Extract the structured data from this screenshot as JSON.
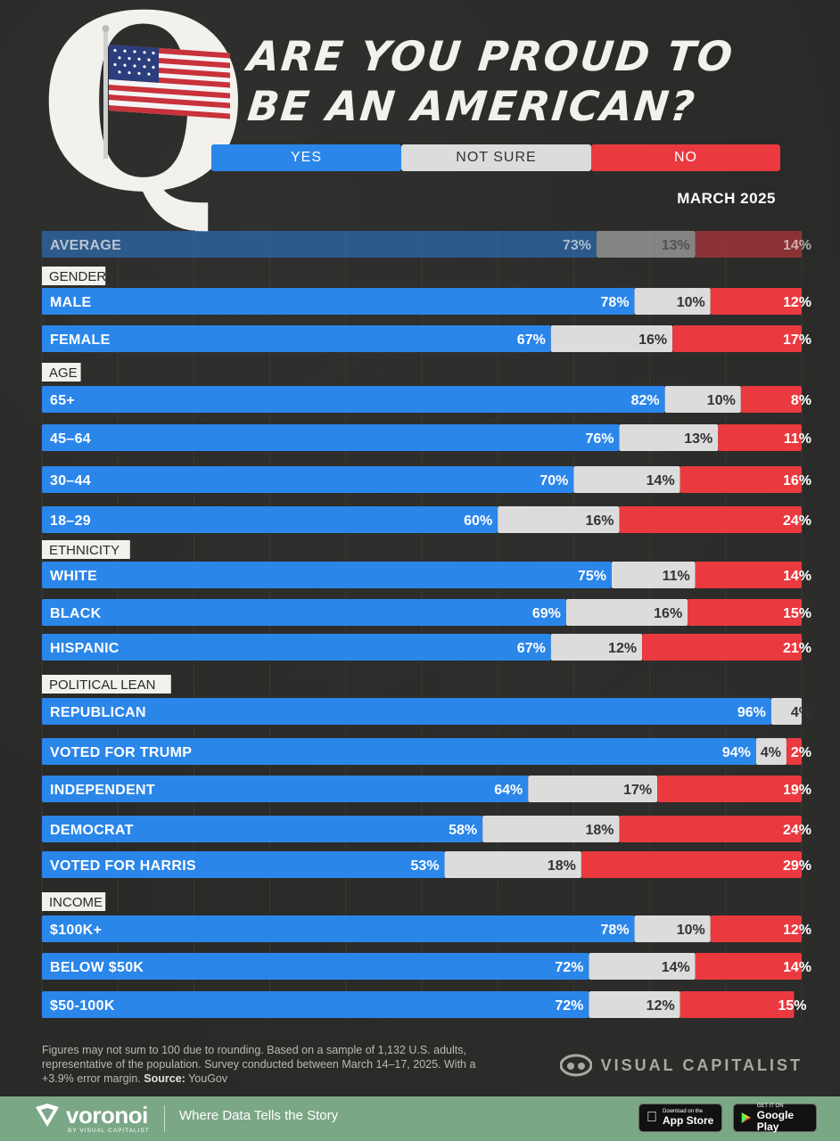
{
  "header": {
    "title_line1": "Are You Proud to",
    "title_line2": "Be an American?",
    "date": "MARCH 2025"
  },
  "legend": {
    "yes": "YES",
    "not_sure": "NOT SURE",
    "no": "NO"
  },
  "colors": {
    "yes": "#2b86ea",
    "not_sure": "#dcdcdc",
    "no": "#ea3a3f",
    "background": "#292927"
  },
  "chart_data": {
    "type": "bar",
    "stacked": true,
    "orientation": "horizontal",
    "series_names": [
      "YES",
      "NOT SURE",
      "NO"
    ],
    "average": {
      "label": "AVERAGE",
      "values": [
        73,
        13,
        14
      ]
    },
    "groups": [
      {
        "name": "GENDER",
        "rows": [
          {
            "label": "MALE",
            "values": [
              78,
              10,
              12
            ]
          },
          {
            "label": "FEMALE",
            "values": [
              67,
              16,
              17
            ]
          }
        ]
      },
      {
        "name": "AGE",
        "rows": [
          {
            "label": "65+",
            "values": [
              82,
              10,
              8
            ]
          },
          {
            "label": "45–64",
            "values": [
              76,
              13,
              11
            ]
          },
          {
            "label": "30–44",
            "values": [
              70,
              14,
              16
            ]
          },
          {
            "label": "18–29",
            "values": [
              60,
              16,
              24
            ]
          }
        ]
      },
      {
        "name": "ETHNICITY",
        "rows": [
          {
            "label": "WHITE",
            "values": [
              75,
              11,
              14
            ]
          },
          {
            "label": "BLACK",
            "values": [
              69,
              16,
              15
            ]
          },
          {
            "label": "HISPANIC",
            "values": [
              67,
              12,
              21
            ]
          }
        ]
      },
      {
        "name": "POLITICAL LEAN",
        "rows": [
          {
            "label": "REPUBLICAN",
            "values": [
              96,
              4,
              null
            ]
          },
          {
            "label": "VOTED FOR TRUMP",
            "values": [
              94,
              4,
              2
            ]
          },
          {
            "label": "INDEPENDENT",
            "values": [
              64,
              17,
              19
            ]
          },
          {
            "label": "DEMOCRAT",
            "values": [
              58,
              18,
              24
            ]
          },
          {
            "label": "VOTED FOR HARRIS",
            "values": [
              53,
              18,
              29
            ]
          }
        ]
      },
      {
        "name": "INCOME",
        "rows": [
          {
            "label": "$100K+",
            "values": [
              78,
              10,
              12
            ]
          },
          {
            "label": "BELOW $50K",
            "values": [
              72,
              14,
              14
            ]
          },
          {
            "label": "$50-100K",
            "values": [
              72,
              12,
              15
            ]
          }
        ]
      }
    ],
    "value_suffix": "%"
  },
  "footer": {
    "note_text": "Figures may not sum to 100 due to rounding. Based on a sample of 1,132 U.S. adults, representative of the population. Survey conducted between March 14–17, 2025. With a +3.9% error margin.",
    "source_label": "Source:",
    "source_value": "YouGov",
    "publisher": "VISUAL CAPITALIST",
    "brand_name": "voronoi",
    "brand_sub": "BY VISUAL CAPITALIST",
    "tagline": "Where Data Tells the Story",
    "appstore_small": "Download on the",
    "appstore_big": "App Store",
    "googleplay_small": "GET IT ON",
    "googleplay_big": "Google Play"
  }
}
